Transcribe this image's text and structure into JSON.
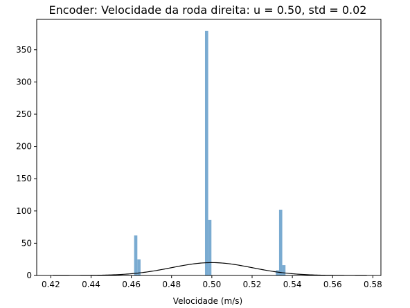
{
  "chart_data": {
    "type": "bar",
    "title": "Encoder: Velocidade da roda direita: u = 0.50,  std = 0.02",
    "xlabel": "Velocidade (m/s)",
    "ylabel": "",
    "xlim": [
      0.413,
      0.584
    ],
    "ylim": [
      0,
      397
    ],
    "xticks": [
      "0.42",
      "0.44",
      "0.46",
      "0.48",
      "0.50",
      "0.52",
      "0.54",
      "0.56",
      "0.58"
    ],
    "xtick_values": [
      0.42,
      0.44,
      0.46,
      0.48,
      0.5,
      0.52,
      0.54,
      0.56,
      0.58
    ],
    "yticks": [
      "0",
      "50",
      "100",
      "150",
      "200",
      "250",
      "300",
      "350"
    ],
    "ytick_values": [
      0,
      50,
      100,
      150,
      200,
      250,
      300,
      350
    ],
    "bin_width": 0.0016,
    "series": [
      {
        "kind": "histogram",
        "color": "#7aabd1",
        "bins": [
          {
            "x": 0.4614,
            "value": 62
          },
          {
            "x": 0.463,
            "value": 25
          },
          {
            "x": 0.4966,
            "value": 379
          },
          {
            "x": 0.4982,
            "value": 86
          },
          {
            "x": 0.5318,
            "value": 8
          },
          {
            "x": 0.5334,
            "value": 102
          },
          {
            "x": 0.535,
            "value": 16
          }
        ]
      },
      {
        "kind": "normal-curve",
        "color": "#000000",
        "mean": 0.5,
        "std": 0.02,
        "x_range": [
          0.421,
          0.577
        ]
      }
    ],
    "grid": false,
    "legend": "none"
  }
}
